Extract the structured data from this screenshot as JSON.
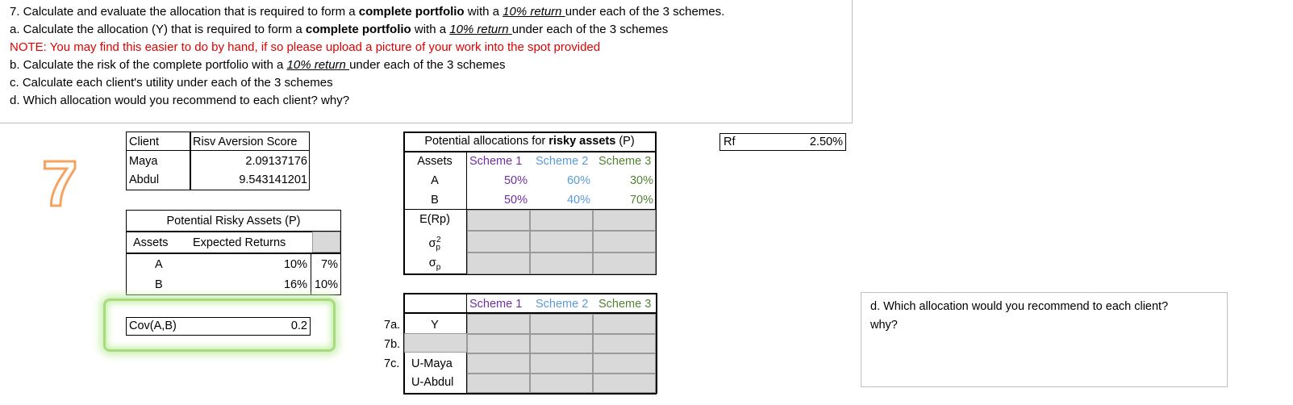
{
  "question": {
    "line7": {
      "pre": "7. Calculate and evaluate the allocation that is required to form a ",
      "bold": "complete portfolio",
      "mid": " with a ",
      "u": "10% return ",
      "post": "under each of the 3 schemes."
    },
    "linea": {
      "pre": "a. Calculate the allocation (Y) that is required to form a ",
      "bold": "complete portfolio",
      "mid": " with a ",
      "u": "10% return ",
      "post": "under each of the 3 schemes"
    },
    "note": "NOTE: You may find this easier to do by hand, if so please upload a picture of your work into the spot provided",
    "lineb": {
      "pre": "b. Calculate the risk of the complete portfolio with a ",
      "u": "10% return ",
      "post": "under each of the 3 schemes"
    },
    "linec": "c. Calculate each client's utility under each of the 3 schemes",
    "lined": "d. Which allocation would you recommend to each client? why?"
  },
  "seven_label": "7",
  "clients": {
    "h1": "Client",
    "h2": "Risv Aversion Score",
    "rows": [
      {
        "name": "Maya",
        "score": "2.09137176"
      },
      {
        "name": "Abdul",
        "score": "9.543141201"
      }
    ]
  },
  "risky_assets": {
    "title": "Potential Risky Assets (P)",
    "h1": "Assets",
    "h2": "Expected Returns",
    "rows": [
      {
        "asset": "A",
        "ret": "10%",
        "sd": "7%"
      },
      {
        "asset": "B",
        "ret": "16%",
        "sd": "10%"
      }
    ]
  },
  "cov": {
    "label": "Cov(A,B)",
    "value": "0.2"
  },
  "alloc": {
    "title_pre": "Potential allocations for ",
    "title_bold": "risky assets",
    "title_post": " (P)",
    "assets_h": "Assets",
    "schemes": [
      "Scheme 1",
      "Scheme 2",
      "Scheme 3"
    ],
    "rows": [
      {
        "asset": "A",
        "vals": [
          "50%",
          "60%",
          "30%"
        ]
      },
      {
        "asset": "B",
        "vals": [
          "50%",
          "40%",
          "70%"
        ]
      }
    ],
    "erp": "E(Rp)",
    "sigma": "σ",
    "sub_p": "p",
    "sup_2": "2"
  },
  "answers": {
    "schemes": [
      "Scheme 1",
      "Scheme 2",
      "Scheme 3"
    ],
    "q7a": "7a.",
    "q7b": "7b.",
    "q7c": "7c.",
    "y": "Y",
    "umaya": "U-Maya",
    "uabdul": "U-Abdul"
  },
  "rf": {
    "label": "Rf",
    "value": "2.50%"
  },
  "d_box": {
    "line1": "d. Which allocation would you recommend to each client?",
    "line2": "why?"
  },
  "colors": {
    "scheme1": "#7030a0",
    "scheme2": "#5b9bd5",
    "scheme3": "#538135",
    "note": "#e00000",
    "seven": "#f4a460",
    "highlight": "#a6dc7e"
  }
}
